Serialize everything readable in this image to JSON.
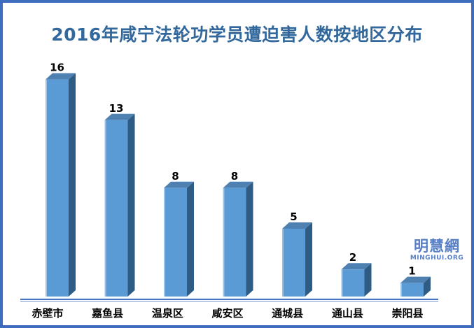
{
  "frame": {
    "border_color": "#3e6dbd",
    "background_color": "#ffffff"
  },
  "title": {
    "text": "2016年咸宁法轮功学员遭迫害人数按地区分布",
    "color": "#33689c"
  },
  "watermark": {
    "cjk": "明慧網",
    "latin": "MINGHUI.ORG",
    "color": "#587fc6"
  },
  "chart_data": {
    "type": "bar",
    "style": "3d-column",
    "title": "2016年咸宁法轮功学员遭迫害人数按地区分布",
    "categories": [
      "赤壁市",
      "嘉鱼县",
      "温泉区",
      "咸安区",
      "通城县",
      "通山县",
      "崇阳县"
    ],
    "values": [
      16,
      13,
      8,
      8,
      5,
      2,
      1
    ],
    "xlabel": "",
    "ylabel": "",
    "ylim": [
      0,
      16
    ],
    "grid": false,
    "legend": false,
    "data_labels": true,
    "bar_front_color": "#5b9bd5",
    "bar_top_color": "#4e80b2",
    "bar_side_color": "#2f5c85",
    "bar_highlight_color": "#a7c9e6",
    "axis_line_color": "#4472c4",
    "axis_line_color_light": "#a4bbe0",
    "value_label_color": "#000000",
    "category_label_color": "#000000"
  }
}
